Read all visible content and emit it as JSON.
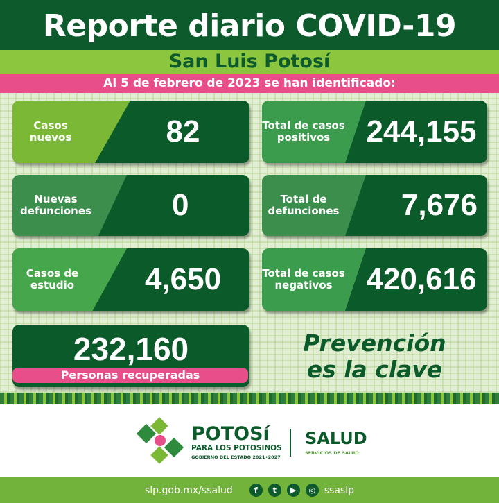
{
  "header": {
    "title": "Reporte diario COVID-19",
    "subtitle": "San Luis Potosí",
    "date_line": "Al 5 de febrero de 2023 se han identificado:"
  },
  "cards": [
    {
      "label": "Casos nuevos",
      "value": "82"
    },
    {
      "label": "Total de casos positivos",
      "value": "244,155"
    },
    {
      "label": "Nuevas defunciones",
      "value": "0"
    },
    {
      "label": "Total de defunciones",
      "value": "7,676"
    },
    {
      "label": "Casos de estudio",
      "value": "4,650"
    },
    {
      "label": "Total de casos negativos",
      "value": "420,616"
    }
  ],
  "recovered": {
    "value": "232,160",
    "label": "Personas recuperadas"
  },
  "slogan": {
    "line1": "Prevención",
    "line2": "es la clave"
  },
  "logos": {
    "potosi": "POTOSí",
    "potosi_sub": "PARA LOS POTOSINOS",
    "gobierno": "GOBIERNO DEL ESTADO 2021•2027",
    "salud": "SALUD",
    "salud_sub": "SERVICIOS DE SALUD"
  },
  "footer": {
    "url": "slp.gob.mx/ssalud",
    "handle": "ssaslp",
    "icons": [
      "facebook-icon",
      "twitter-icon",
      "youtube-icon",
      "instagram-icon"
    ]
  },
  "colors": {
    "dark_green": "#0b5a2a",
    "light_green": "#8cc63f",
    "pink": "#e84e8a"
  }
}
